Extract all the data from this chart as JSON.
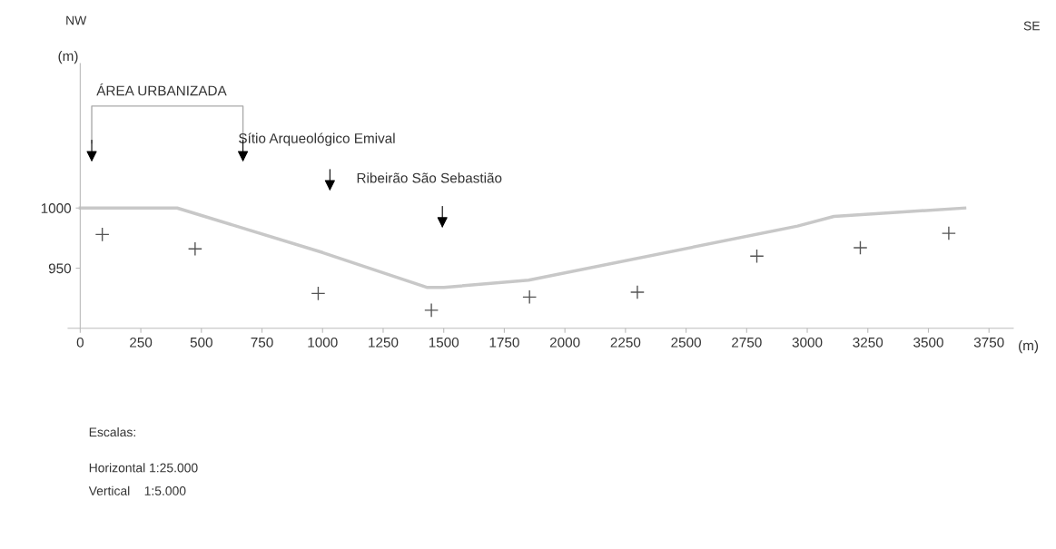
{
  "chart_data": {
    "type": "line",
    "ylabel": "(m)",
    "xlabel": "(m)",
    "x": [
      0,
      400,
      1000,
      1430,
      1500,
      1850,
      2960,
      3110,
      3650
    ],
    "series": [
      {
        "color": "#c8c8c8",
        "marker": "none",
        "values": [
          1000,
          1000,
          963,
          934,
          934,
          940,
          985,
          993,
          1000
        ]
      },
      {
        "type": "scatter",
        "color": "#555555",
        "marker": "cross",
        "x": [
          91,
          474,
          982,
          1449,
          1854,
          2299,
          2792,
          3219,
          3584
        ],
        "values": [
          978,
          966,
          929,
          915,
          926,
          930,
          960,
          967,
          979
        ]
      }
    ],
    "xlim": [
      -50,
      3850
    ],
    "ylim": [
      900,
      1120
    ],
    "xticks": [
      0,
      250,
      500,
      750,
      1000,
      1250,
      1500,
      1750,
      2000,
      2250,
      2500,
      2750,
      3000,
      3250,
      3500,
      3750
    ],
    "yticks": [
      950,
      1000
    ],
    "grid": false,
    "legend": false,
    "annotations": [
      "Sítio Arqueológico Emival",
      "Ribeirão São Sebastião",
      "ÁREA URBANIZADA",
      "NW",
      "SE",
      "Escalas:",
      "Horizontal 1:25.000",
      "Vertical    1:5.000"
    ]
  }
}
